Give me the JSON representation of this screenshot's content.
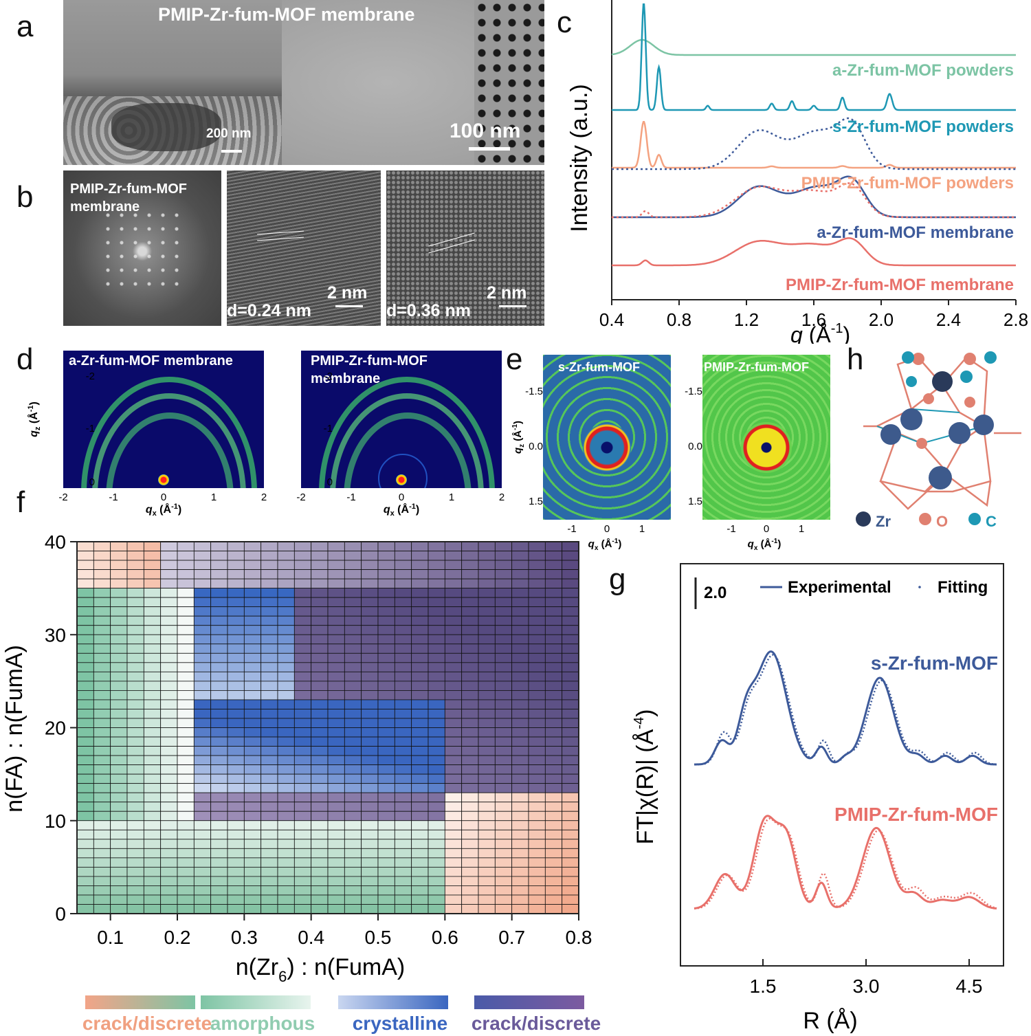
{
  "panel_letters": {
    "a": "a",
    "b": "b",
    "c": "c",
    "d": "d",
    "e": "e",
    "f": "f",
    "g": "g",
    "h": "h"
  },
  "panel_a": {
    "title": "PMIP-Zr-fum-MOF  membrane",
    "scale_left": "200 nm",
    "scale_right": "100 nm"
  },
  "panel_b": {
    "fft_label_1": "PMIP-Zr-fum-MOF",
    "fft_label_2": "membrane",
    "d1": "d=0.24 nm",
    "d2": "d=0.36 nm",
    "scale1": "2 nm",
    "scale2": "2 nm"
  },
  "panel_d": {
    "label_left": "a-Zr-fum-MOF  membrane",
    "label_right_1": "PMIP-Zr-fum-MOF",
    "label_right_2": "membrane",
    "yticks": [
      "-2",
      "-1",
      "0"
    ],
    "xticks": [
      "-2",
      "-1",
      "0",
      "1",
      "2"
    ],
    "ylabel": "q",
    "ylabel_sub": "z",
    "ylabel_unit": " (Å",
    "ylabel_exp": "-1",
    "ylabel_close": ")",
    "xlabel": "q",
    "xlabel_sub": "x",
    "xlabel_unit": " (Å",
    "xlabel_exp": "-1",
    "xlabel_close": ")"
  },
  "panel_e": {
    "label_left": "s-Zr-fum-MOF",
    "label_right": "PMIP-Zr-fum-MOF",
    "yticks": [
      "-1.5",
      "0.0",
      "1.5"
    ],
    "xticks": [
      "-1",
      "0",
      "1"
    ],
    "ylabel": "q",
    "ylabel_sub": "z",
    "ylabel_unit": " (Å",
    "ylabel_exp": "-1",
    "ylabel_close": ")",
    "xlabel": "q",
    "xlabel_sub": "x",
    "xlabel_unit": " (Å",
    "xlabel_exp": "-1",
    "xlabel_close": ")"
  },
  "panel_h": {
    "legend": [
      "Zr",
      "O",
      "C"
    ],
    "colors": {
      "Zr": "#3d5a8c",
      "O": "#e08070",
      "C": "#1e98b4"
    }
  },
  "chart_data": [
    {
      "id": "c",
      "type": "line",
      "xlabel": "q",
      "xlabel_unit": " (Å",
      "xlabel_exp": "-1",
      "xlabel_close": ")",
      "ylabel": "Intensity (a.u.)",
      "xlim": [
        0.4,
        2.8
      ],
      "xticks": [
        "0.4",
        "0.8",
        "1.2",
        "1.6",
        "2.0",
        "2.4",
        "2.8"
      ],
      "series": [
        {
          "name": "a-Zr-fum-MOF powders",
          "color": "#7cc4a4",
          "peaks": [
            [
              0.58,
              1.0,
              0.07
            ]
          ]
        },
        {
          "name": "s-Zr-fum-MOF powders",
          "color": "#1e98b4",
          "peaks": [
            [
              0.59,
              3.0,
              0.012
            ],
            [
              0.68,
              1.2,
              0.012
            ],
            [
              0.97,
              0.12,
              0.01
            ],
            [
              1.35,
              0.18,
              0.012
            ],
            [
              1.47,
              0.25,
              0.012
            ],
            [
              1.6,
              0.12,
              0.012
            ],
            [
              1.77,
              0.35,
              0.012
            ],
            [
              2.05,
              0.45,
              0.015
            ]
          ]
        },
        {
          "name": "PMIP-Zr-fum-MOF powders",
          "color": "#f4a280",
          "peaks": [
            [
              0.59,
              1.6,
              0.018
            ],
            [
              0.68,
              0.45,
              0.015
            ],
            [
              1.35,
              0.05,
              0.02
            ],
            [
              1.77,
              0.06,
              0.02
            ],
            [
              2.05,
              0.1,
              0.02
            ]
          ]
        },
        {
          "name": "a-Zr-fum-MOF membrane",
          "color": "#3d5a9a",
          "peaks": [
            [
              1.27,
              0.9,
              0.12
            ],
            [
              1.62,
              0.9,
              0.14
            ],
            [
              1.83,
              0.9,
              0.08
            ]
          ]
        },
        {
          "name": "PMIP-Zr-fum-MOF membrane",
          "color": "#e8706a",
          "peaks": [
            [
              0.6,
              0.15,
              0.02
            ],
            [
              1.27,
              0.7,
              0.14
            ],
            [
              1.6,
              0.6,
              0.14
            ],
            [
              1.83,
              0.65,
              0.08
            ]
          ]
        }
      ]
    },
    {
      "id": "f",
      "type": "heatmap",
      "xlabel": "n(Zr",
      "xlabel_sub": "6",
      "xlabel_rest": ") : n(FumA)",
      "ylabel": "n(FA) : n(FumA)",
      "xlim": [
        0.05,
        0.8
      ],
      "ylim": [
        0,
        40
      ],
      "xticks": [
        "0.1",
        "0.2",
        "0.3",
        "0.4",
        "0.5",
        "0.6",
        "0.7",
        "0.8"
      ],
      "yticks": [
        "0",
        "10",
        "20",
        "30",
        "40"
      ],
      "legend": [
        "crack/discrete",
        "amorphous",
        "crystalline",
        "crack/discrete"
      ],
      "legend_colors": [
        "#ee9878",
        "#7ec4a4",
        "#3a66c0",
        "#6a5aa0"
      ]
    },
    {
      "id": "g",
      "type": "line",
      "xlabel": "R (Å)",
      "ylabel": "FT|χ(R)| (Å",
      "ylabel_exp": "-4",
      "ylabel_close": ")",
      "xlim": [
        0.3,
        5.0
      ],
      "xticks": [
        "1.5",
        "3.0",
        "4.5"
      ],
      "scale_bar": "2.0",
      "legend": [
        "Experimental",
        "Fitting"
      ],
      "series": [
        {
          "name": "s-Zr-fum-MOF",
          "color": "#3d5a9a",
          "peaks": [
            [
              0.9,
              0.8,
              0.1
            ],
            [
              1.25,
              1.4,
              0.12
            ],
            [
              1.62,
              3.9,
              0.22
            ],
            [
              2.35,
              0.6,
              0.08
            ],
            [
              2.7,
              0.2,
              0.08
            ],
            [
              3.2,
              3.0,
              0.2
            ],
            [
              3.75,
              0.3,
              0.1
            ],
            [
              4.15,
              0.3,
              0.1
            ],
            [
              4.55,
              0.3,
              0.1
            ]
          ]
        },
        {
          "name": "PMIP-Zr-fum-MOF",
          "color": "#e8706a",
          "peaks": [
            [
              0.95,
              1.2,
              0.15
            ],
            [
              1.53,
              3.0,
              0.16
            ],
            [
              1.85,
              2.3,
              0.14
            ],
            [
              2.35,
              0.9,
              0.08
            ],
            [
              3.15,
              2.8,
              0.2
            ],
            [
              3.7,
              0.5,
              0.12
            ],
            [
              4.1,
              0.3,
              0.15
            ],
            [
              4.5,
              0.4,
              0.15
            ]
          ]
        }
      ]
    }
  ]
}
